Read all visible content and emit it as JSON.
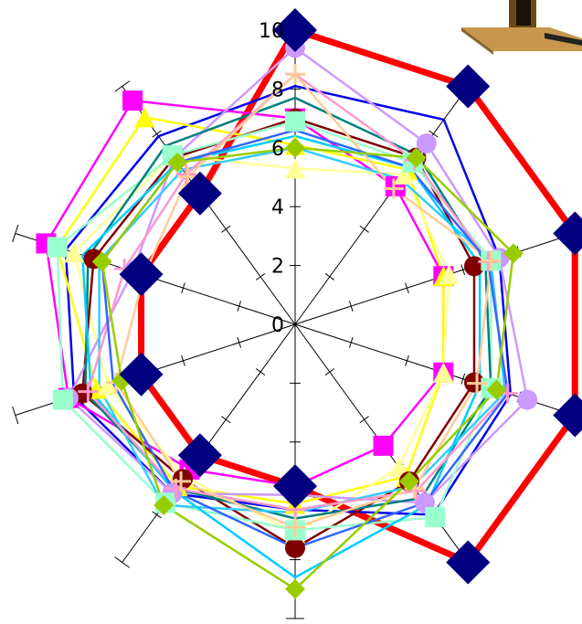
{
  "chart_data": {
    "type": "radar",
    "title": "",
    "axes_count": 10,
    "rlim": [
      0,
      10
    ],
    "tick_labels": [
      "0",
      "2",
      "4",
      "6",
      "8",
      "10"
    ],
    "grid": false,
    "legend": "none",
    "series": [
      {
        "color": "#ff0000",
        "marker": "none",
        "width": 7,
        "values": [
          10,
          10,
          10,
          10,
          10,
          5.5,
          5.5,
          5.5,
          5.5,
          5.5
        ]
      },
      {
        "color": "#0000ee",
        "marker": "none",
        "width": 2.5,
        "values": [
          8.1,
          8.6,
          7.3,
          7.7,
          8.0,
          6.3,
          7.1,
          7.9,
          8.2,
          7.9
        ]
      },
      {
        "color": "#ff00ff",
        "marker": "square",
        "width": 2.5,
        "values": [
          7.0,
          5.8,
          5.3,
          5.3,
          5.1,
          5.5,
          6.1,
          8.1,
          8.9,
          9.4
        ]
      },
      {
        "color": "#ffff00",
        "marker": "triangle",
        "width": 2.5,
        "values": [
          6.1,
          6.5,
          5.3,
          5.3,
          6.4,
          6.1,
          6.8,
          7.1,
          8.5,
          8.7
        ]
      },
      {
        "color": "#ffff99",
        "marker": "triangle",
        "width": 2.5,
        "values": [
          5.3,
          6.3,
          5.5,
          5.3,
          6.0,
          7.1,
          6.4,
          6.7,
          7.9,
          7.1
        ]
      },
      {
        "color": "#800000",
        "marker": "circle",
        "width": 2.5,
        "values": [
          7.0,
          7.0,
          6.4,
          6.4,
          6.6,
          7.6,
          6.5,
          7.6,
          7.2,
          7.0
        ]
      },
      {
        "color": "#cc99ff",
        "marker": "circle",
        "width": 2.5,
        "values": [
          9.4,
          7.6,
          7.3,
          8.3,
          7.5,
          5.8,
          7.1,
          8.1,
          5.8,
          7.0
        ]
      },
      {
        "color": "#99ffcc",
        "marker": "square",
        "width": 2.5,
        "values": [
          6.9,
          6.8,
          7.0,
          7.0,
          8.1,
          7.0,
          7.5,
          8.3,
          8.5,
          7.1
        ]
      },
      {
        "color": "#008080",
        "marker": "none",
        "width": 2.5,
        "values": [
          7.7,
          7.1,
          6.8,
          7.0,
          7.3,
          6.6,
          6.9,
          7.5,
          7.4,
          7.5
        ]
      },
      {
        "color": "#33ccff",
        "marker": "none",
        "width": 2.5,
        "values": [
          6.0,
          6.1,
          7.0,
          7.5,
          6.8,
          6.4,
          7.6,
          7.0,
          7.0,
          6.5
        ]
      },
      {
        "color": "#00ccff",
        "marker": "none",
        "width": 2.5,
        "values": [
          6.4,
          6.6,
          6.6,
          6.6,
          7.6,
          8.6,
          7.0,
          7.3,
          7.6,
          6.8
        ]
      },
      {
        "color": "#ff99cc",
        "marker": "cross",
        "width": 2.5,
        "values": [
          8.5,
          6.9,
          6.9,
          7.6,
          7.0,
          6.3,
          6.9,
          7.4,
          6.1,
          6.3
        ]
      },
      {
        "color": "#ffcc99",
        "marker": "cross",
        "width": 2.5,
        "values": [
          8.5,
          5.7,
          7.0,
          6.5,
          6.9,
          6.9,
          6.6,
          6.4,
          5.4,
          6.2
        ]
      },
      {
        "color": "#3366ff",
        "marker": "none",
        "width": 2.5,
        "values": [
          6.6,
          6.6,
          6.9,
          7.6,
          7.5,
          7.6,
          7.0,
          6.5,
          6.9,
          6.8
        ]
      },
      {
        "color": "#99cc00",
        "marker": "diamond",
        "width": 2.5,
        "values": [
          6.0,
          7.0,
          7.8,
          7.2,
          6.6,
          9.0,
          7.6,
          6.2,
          6.9,
          6.8
        ]
      },
      {
        "color": "#000080",
        "marker": "diamond",
        "width": 0,
        "values": [
          10,
          10,
          10,
          10,
          10,
          5.5,
          5.5,
          5.5,
          5.5,
          5.5
        ]
      }
    ]
  }
}
